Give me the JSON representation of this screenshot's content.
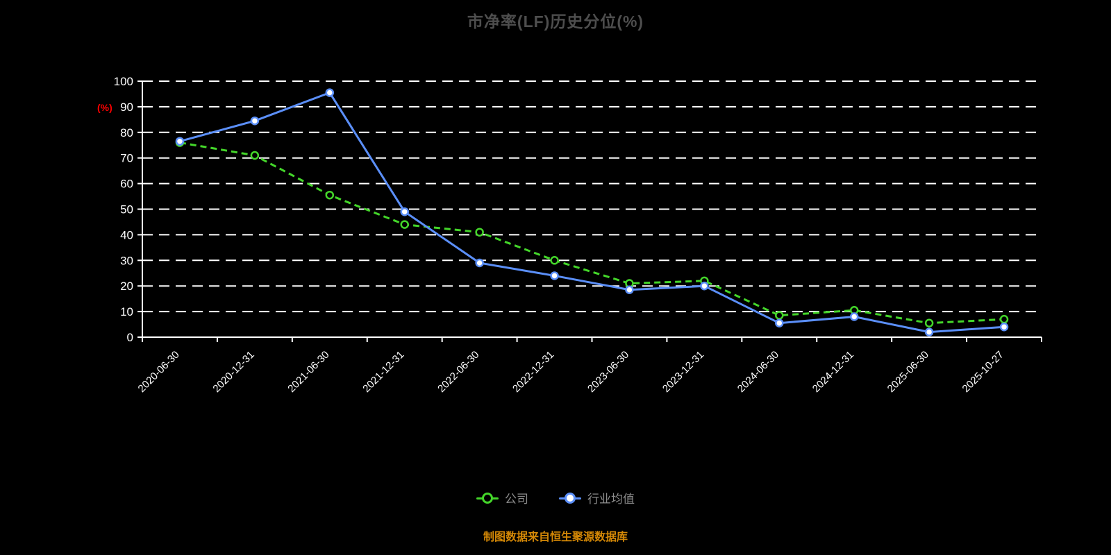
{
  "title": "市净率(LF)历史分位(%)",
  "source_note": "制图数据来自恒生聚源数据库",
  "colors": {
    "background": "#000000",
    "title_text": "#4e4e4e",
    "axis": "#ffffff",
    "grid": "#ffffff",
    "y_unit_label": "#ff0000",
    "company_green": "#44d62a",
    "industry_blue": "#5b8ff9",
    "legend_text": "#8c8c8c",
    "source_note_text": "#d48806"
  },
  "legend": {
    "items": [
      {
        "label": "公司",
        "color": "#44d62a",
        "marker_fill": "#000000"
      },
      {
        "label": "行业均值",
        "color": "#5b8ff9",
        "marker_fill": "#ffffff"
      }
    ]
  },
  "chart_data": {
    "type": "line",
    "title": "市净率(LF)历史分位(%)",
    "ylabel": "(%)",
    "xlabel": "",
    "x": [
      "2020-06-30",
      "2020-12-31",
      "2021-06-30",
      "2021-12-31",
      "2022-06-30",
      "2022-12-31",
      "2023-06-30",
      "2023-12-31",
      "2024-06-30",
      "2024-12-31",
      "2025-06-30",
      "2025-10-27"
    ],
    "series": [
      {
        "name": "公司",
        "color": "#44d62a",
        "marker_fill": "#000000",
        "line_style": "dashed",
        "values": [
          76,
          71,
          55.5,
          44,
          41,
          30,
          21,
          22,
          8.5,
          10.5,
          5.5,
          7
        ]
      },
      {
        "name": "行业均值",
        "color": "#5b8ff9",
        "marker_fill": "#ffffff",
        "line_style": "solid",
        "values": [
          76.5,
          84.5,
          95.5,
          49,
          29,
          24,
          18.5,
          20,
          5.5,
          8,
          2,
          4
        ]
      }
    ],
    "ylim": [
      0,
      100
    ],
    "yticks": [
      0,
      10,
      20,
      30,
      40,
      50,
      60,
      70,
      80,
      90,
      100
    ],
    "grid": "horizontal-dashed",
    "legend_position": "bottom"
  }
}
